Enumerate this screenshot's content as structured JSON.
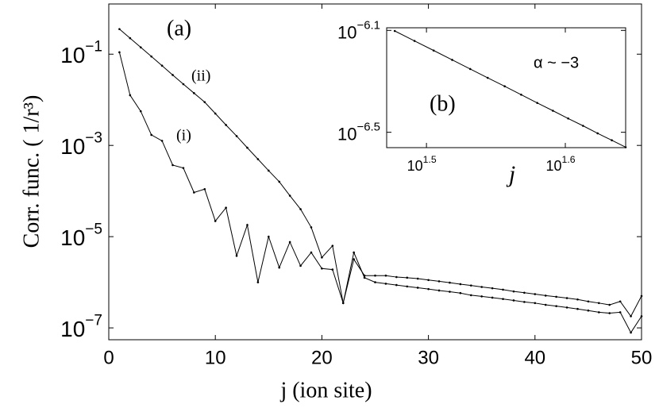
{
  "chart_data": [
    {
      "type": "line",
      "xscale": "linear",
      "yscale": "log",
      "xlabel": "j (ion site)",
      "ylabel": "Corr. func. ( 1/r³)",
      "annotations": [
        "(a)"
      ],
      "x": [
        1,
        2,
        3,
        4,
        5,
        6,
        7,
        8,
        9,
        10,
        11,
        12,
        13,
        14,
        15,
        16,
        17,
        18,
        19,
        20,
        21,
        22,
        23,
        24,
        25,
        26,
        27,
        28,
        29,
        30,
        31,
        32,
        33,
        34,
        35,
        36,
        37,
        38,
        39,
        40,
        41,
        42,
        43,
        44,
        45,
        46,
        47,
        48,
        49,
        50
      ],
      "series": [
        {
          "name": "(i)",
          "color": "#000000",
          "values": [
            0.11,
            0.0126,
            0.0056,
            0.0017,
            0.00126,
            0.00037,
            0.00032,
            9.3e-05,
            0.00011,
            2.2e-05,
            4.3e-05,
            3.8e-06,
            1.8e-05,
            1e-06,
            1e-05,
            2.1e-06,
            7.6e-06,
            2.3e-06,
            4.5e-06,
            2e-06,
            1.9e-06,
            3.5e-07,
            4.5e-06,
            1.26e-06,
            1e-06,
            9.3e-07,
            8.7e-07,
            8.1e-07,
            7.6e-07,
            7.1e-07,
            6.6e-07,
            6.2e-07,
            5.8e-07,
            5.2e-07,
            4.9e-07,
            4.6e-07,
            4.3e-07,
            4e-07,
            3.7e-07,
            3.5e-07,
            3.2e-07,
            3e-07,
            2.8e-07,
            2.6e-07,
            2.4e-07,
            2.2e-07,
            2.1e-07,
            2.2e-07,
            7.9e-08,
            1.8e-07
          ]
        },
        {
          "name": "(ii)",
          "color": "#000000",
          "values": [
            0.355,
            0.224,
            0.141,
            0.089,
            0.056,
            0.035,
            0.022,
            0.014,
            0.0089,
            0.005,
            0.0028,
            0.0016,
            0.00089,
            0.0005,
            0.00028,
            0.00016,
            7.9e-05,
            4e-05,
            1.6e-05,
            3.5e-06,
            6.3e-06,
            3.5e-07,
            3.2e-06,
            1.4e-06,
            1.4e-06,
            1.4e-06,
            1.3e-06,
            1.26e-06,
            1.2e-06,
            1.12e-06,
            1.05e-06,
            9.8e-07,
            9.1e-07,
            8.5e-07,
            7.9e-07,
            7.4e-07,
            6.9e-07,
            6.3e-07,
            5.9e-07,
            5.5e-07,
            5.1e-07,
            4.8e-07,
            4.5e-07,
            4.2e-07,
            3.8e-07,
            3.5e-07,
            3.2e-07,
            3.8e-07,
            1.8e-07,
            5e-07
          ]
        }
      ],
      "xlim": [
        0,
        50
      ],
      "xticks": [
        0,
        10,
        20,
        30,
        40,
        50
      ],
      "ylim": [
        5.5e-08,
        1.26
      ],
      "yticks": [
        {
          "value": 0.1,
          "label": "10−1"
        },
        {
          "value": 0.001,
          "label": "10−3"
        },
        {
          "value": 1e-05,
          "label": "10−5"
        },
        {
          "value": 1e-07,
          "label": "10−7"
        }
      ]
    },
    {
      "type": "line",
      "xscale": "log",
      "yscale": "log",
      "xlabel": "j",
      "annotations": [
        "(b)",
        "α ~ −3"
      ],
      "x": [
        30,
        31,
        32,
        33,
        34,
        35,
        36,
        37,
        38,
        39,
        40,
        41,
        42,
        43,
        44
      ],
      "series": [
        {
          "color": "#000000",
          "values": [
            7.9e-07,
            7.22e-07,
            6.62e-07,
            6.08e-07,
            5.6e-07,
            5.17e-07,
            4.79e-07,
            4.44e-07,
            4.12e-07,
            3.84e-07,
            3.58e-07,
            3.35e-07,
            3.13e-07,
            2.94e-07,
            2.76e-07
          ]
        }
      ],
      "xlim": [
        29.6,
        44
      ],
      "xticks": [
        {
          "value": 31.62,
          "label": "101.5"
        },
        {
          "value": 39.81,
          "label": "101.6"
        }
      ],
      "ylim": [
        2.75e-07,
        8.13e-07
      ],
      "yticks": [
        {
          "value": 7.94e-07,
          "label": "10−6.1"
        },
        {
          "value": 3.16e-07,
          "label": "10−6.5"
        }
      ]
    }
  ]
}
